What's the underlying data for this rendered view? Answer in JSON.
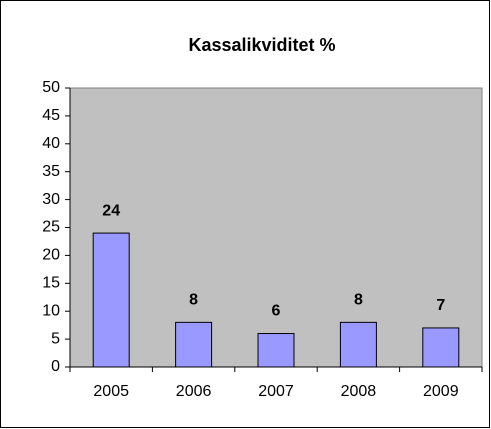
{
  "chart_data": {
    "type": "bar",
    "title": "Kassalikviditet %",
    "categories": [
      "2005",
      "2006",
      "2007",
      "2008",
      "2009"
    ],
    "values": [
      24,
      8,
      6,
      8,
      7
    ],
    "color": "#9999ff",
    "ylim": [
      0,
      50
    ],
    "yticks": [
      0,
      5,
      10,
      15,
      20,
      25,
      30,
      35,
      40,
      45,
      50
    ],
    "grid": false,
    "plot_background": "#c0c0c0"
  }
}
